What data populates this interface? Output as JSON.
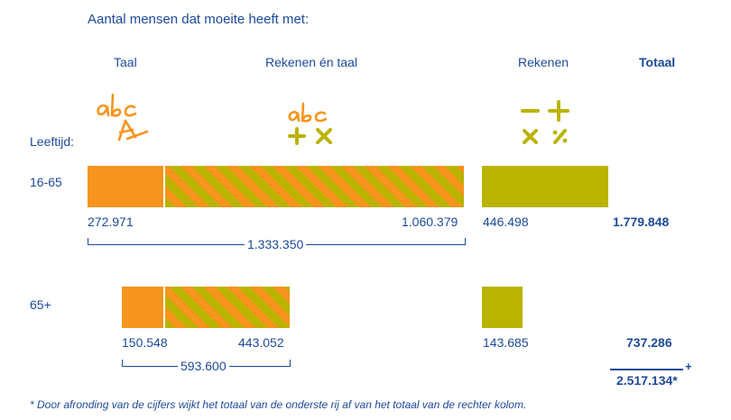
{
  "title": "Aantal mensen dat moeite heeft met:",
  "headers": {
    "taal": "Taal",
    "rekenen_en_taal": "Rekenen én taal",
    "rekenen": "Rekenen",
    "totaal": "Totaal"
  },
  "leeftijd_label": "Leeftijd:",
  "icons": {
    "taal": "handwritten-abc-icon",
    "rekenen_en_taal": "abc-plus-times-icon",
    "rekenen": "math-operators-icon"
  },
  "colors": {
    "taal": "#f7941d",
    "rekenen": "#bab300",
    "text": "#1d4a9a"
  },
  "rows": [
    {
      "age": "16-65",
      "taal": "272.971",
      "rekenen_en_taal": "1.060.379",
      "taal_subtotaal": "1.333.350",
      "rekenen": "446.498",
      "totaal": "1.779.848"
    },
    {
      "age": "65+",
      "taal": "150.548",
      "rekenen_en_taal": "443.052",
      "taal_subtotaal": "593.600",
      "rekenen": "143.685",
      "totaal": "737.286"
    }
  ],
  "sum_total": "2.517.134*",
  "sum_sign": "+",
  "footnote": "* Door afronding van de cijfers wijkt het totaal van de onderste rij af van het totaal van de rechter kolom.",
  "chart_data": {
    "type": "bar",
    "orientation": "horizontal",
    "stacked": true,
    "categories": [
      "16-65",
      "65+"
    ],
    "series": [
      {
        "name": "Taal",
        "values": [
          272971,
          150548
        ]
      },
      {
        "name": "Rekenen én taal",
        "values": [
          1060379,
          443052
        ]
      },
      {
        "name": "Rekenen",
        "values": [
          446498,
          143685
        ]
      }
    ],
    "totals": [
      1779848,
      737286
    ],
    "grand_total": 2517134,
    "title": "Aantal mensen dat moeite heeft met:",
    "xlabel": "",
    "ylabel": "Leeftijd:",
    "grid": false,
    "legend": "top"
  }
}
